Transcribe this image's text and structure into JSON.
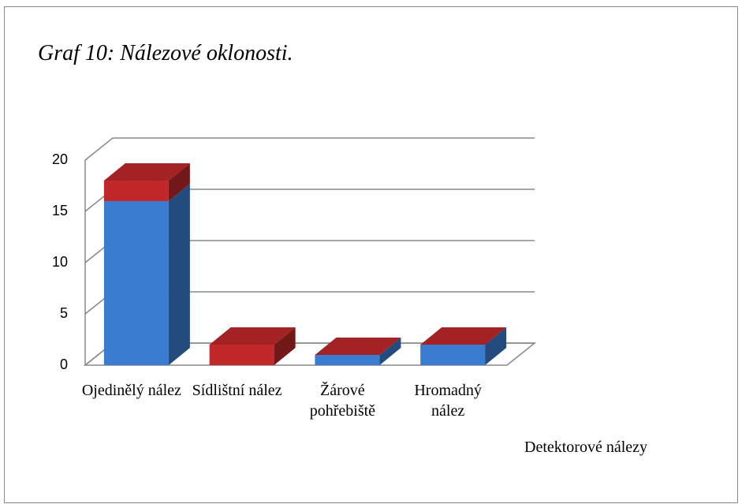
{
  "chart_data": {
    "type": "bar3d",
    "title": "Graf 10: Nálezové oklonosti.",
    "categories": [
      "Ojedinělý nález",
      "Sídlištní nález",
      "Žárové pohřebiště",
      "Hromadný nález"
    ],
    "series": [
      {
        "color": "#3a7dd0",
        "values": [
          16,
          0,
          1,
          2
        ]
      },
      {
        "name": "Detektorové nálezy",
        "color": "#c0282a",
        "values": [
          2,
          2,
          0,
          0
        ]
      }
    ],
    "stacked": true,
    "ylim": [
      0,
      20
    ],
    "yticks": [
      0,
      5,
      10,
      15,
      20
    ],
    "grid": true,
    "legend": "bottom-right"
  }
}
